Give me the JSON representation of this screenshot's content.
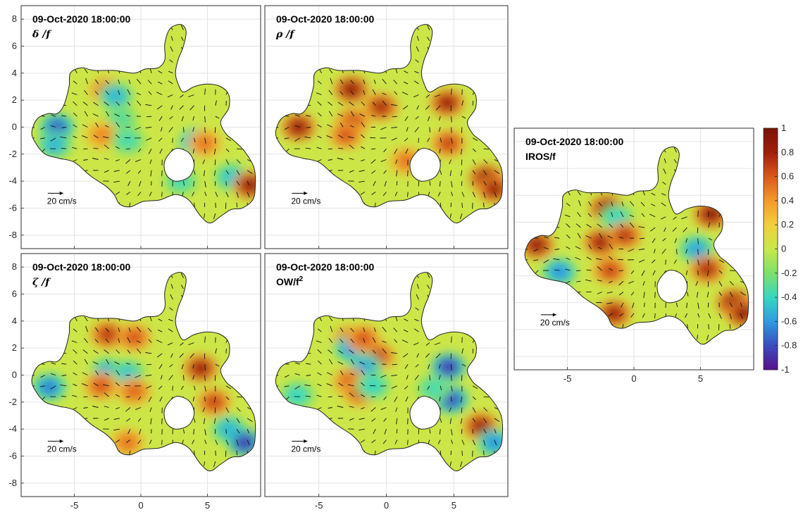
{
  "chart_data": {
    "type": "heatmap",
    "colorbar": {
      "min": -1,
      "max": 1,
      "ticks": [
        "-1",
        "-0.8",
        "-0.6",
        "-0.4",
        "-0.2",
        "0",
        "0.2",
        "0.4",
        "0.6",
        "0.8",
        "1"
      ],
      "colormap": [
        "#5a0f8c",
        "#3a4cc0",
        "#2f9be0",
        "#36d8c0",
        "#7ee06a",
        "#c8e84a",
        "#f2d03a",
        "#f39a2a",
        "#d9581a",
        "#a01e0e",
        "#7a1208"
      ]
    },
    "scale_vector_label": "20 cm/s",
    "panels": [
      {
        "id": "delta",
        "title": "09-Oct-2020 18:00:00",
        "label": "δ /f",
        "xlim": [
          -9,
          9
        ],
        "ylim": [
          -9,
          9
        ],
        "xticks": [
          "-5",
          "0",
          "5"
        ],
        "yticks": [
          "8",
          "6",
          "4",
          "2",
          "0",
          "-2",
          "-4",
          "-6",
          "-8"
        ],
        "show_xticks": false,
        "show_yticks": true,
        "blobs": [
          {
            "x": -6.3,
            "y": 0.0,
            "v": -0.75
          },
          {
            "x": -6.5,
            "y": -1.3,
            "v": -0.5
          },
          {
            "x": -2.6,
            "y": 2.7,
            "v": 0.55
          },
          {
            "x": -1.9,
            "y": 2.3,
            "v": -0.5
          },
          {
            "x": -1.5,
            "y": 0.6,
            "v": -0.3
          },
          {
            "x": -2.9,
            "y": -0.6,
            "v": 0.45
          },
          {
            "x": -1.0,
            "y": -1.0,
            "v": -0.35
          },
          {
            "x": 4.2,
            "y": -1.1,
            "v": -0.75
          },
          {
            "x": 4.8,
            "y": -1.2,
            "v": 0.5
          },
          {
            "x": 6.8,
            "y": -3.7,
            "v": -0.45
          },
          {
            "x": 8.2,
            "y": -4.3,
            "v": 0.85
          },
          {
            "x": 3.0,
            "y": -4.0,
            "v": -0.35
          }
        ]
      },
      {
        "id": "rho",
        "title": "09-Oct-2020 18:00:00",
        "label": "ρ /f",
        "xlim": [
          -9,
          9
        ],
        "ylim": [
          -9,
          9
        ],
        "xticks": [
          "-5",
          "0",
          "5"
        ],
        "yticks": [
          "8",
          "6",
          "4",
          "2",
          "0",
          "-2",
          "-4",
          "-6",
          "-8"
        ],
        "show_xticks": false,
        "show_yticks": false,
        "blobs": [
          {
            "x": -6.5,
            "y": 0.0,
            "v": 0.85
          },
          {
            "x": -2.6,
            "y": 2.8,
            "v": 0.85
          },
          {
            "x": -0.4,
            "y": 1.5,
            "v": 0.75
          },
          {
            "x": -2.5,
            "y": 0.4,
            "v": 0.65
          },
          {
            "x": -3.0,
            "y": -0.6,
            "v": 0.6
          },
          {
            "x": 4.5,
            "y": 1.8,
            "v": 0.8
          },
          {
            "x": 4.6,
            "y": -1.2,
            "v": 0.65
          },
          {
            "x": 7.4,
            "y": -3.8,
            "v": 0.9
          },
          {
            "x": 8.0,
            "y": -4.6,
            "v": 0.8
          },
          {
            "x": 1.5,
            "y": -2.5,
            "v": 0.5
          }
        ]
      },
      {
        "id": "zeta",
        "title": "09-Oct-2020 18:00:00",
        "label": "ζ /f",
        "xlim": [
          -9,
          9
        ],
        "ylim": [
          -9,
          9
        ],
        "xticks": [
          "-5",
          "0",
          "5"
        ],
        "yticks": [
          "8",
          "6",
          "4",
          "2",
          "0",
          "-2",
          "-4",
          "-6",
          "-8"
        ],
        "show_xticks": true,
        "show_yticks": true,
        "blobs": [
          {
            "x": -6.9,
            "y": -0.9,
            "v": -0.65
          },
          {
            "x": -2.5,
            "y": 3.0,
            "v": 0.7
          },
          {
            "x": -0.5,
            "y": 2.8,
            "v": 0.6
          },
          {
            "x": -2.5,
            "y": 0.2,
            "v": -0.55
          },
          {
            "x": -1.0,
            "y": 0.1,
            "v": -0.45
          },
          {
            "x": -3.0,
            "y": -0.8,
            "v": 0.6
          },
          {
            "x": -0.5,
            "y": -1.2,
            "v": 0.55
          },
          {
            "x": 4.5,
            "y": 0.5,
            "v": 0.8
          },
          {
            "x": 5.5,
            "y": -2.0,
            "v": 0.65
          },
          {
            "x": 6.6,
            "y": -4.0,
            "v": -0.5
          },
          {
            "x": 7.8,
            "y": -5.0,
            "v": -0.85
          },
          {
            "x": -1.0,
            "y": -5.0,
            "v": 0.5
          }
        ]
      },
      {
        "id": "ow",
        "title": "09-Oct-2020 18:00:00",
        "label": "OW/f",
        "label_superscript": "2",
        "xlim": [
          -9,
          9
        ],
        "ylim": [
          -9,
          9
        ],
        "xticks": [
          "-5",
          "0",
          "5"
        ],
        "yticks": [
          "8",
          "6",
          "4",
          "2",
          "0",
          "-2",
          "-4",
          "-6",
          "-8"
        ],
        "show_xticks": true,
        "show_yticks": false,
        "blobs": [
          {
            "x": -2.7,
            "y": 2.6,
            "v": 0.7
          },
          {
            "x": -2.6,
            "y": 2.0,
            "v": -0.6
          },
          {
            "x": -1.7,
            "y": 2.7,
            "v": 0.6
          },
          {
            "x": -0.6,
            "y": 1.4,
            "v": 0.65
          },
          {
            "x": -1.6,
            "y": 0.6,
            "v": -0.55
          },
          {
            "x": -2.7,
            "y": -0.5,
            "v": 0.6
          },
          {
            "x": -2.0,
            "y": -1.3,
            "v": 0.6
          },
          {
            "x": -1.0,
            "y": -0.8,
            "v": -0.4
          },
          {
            "x": 4.6,
            "y": 0.6,
            "v": -0.85
          },
          {
            "x": 4.8,
            "y": -1.8,
            "v": -0.8
          },
          {
            "x": 3.5,
            "y": -1.0,
            "v": -0.35
          },
          {
            "x": 7.0,
            "y": -3.8,
            "v": 0.8
          },
          {
            "x": 8.0,
            "y": -5.0,
            "v": -0.6
          },
          {
            "x": -6.6,
            "y": -1.5,
            "v": -0.4
          }
        ]
      },
      {
        "id": "iros",
        "title": "09-Oct-2020 18:00:00",
        "label": "IROS/f",
        "xlim": [
          -9,
          9
        ],
        "ylim": [
          -9,
          9
        ],
        "xticks": [
          "-5",
          "0",
          "5"
        ],
        "yticks": [],
        "show_xticks": true,
        "show_yticks": false,
        "blobs": [
          {
            "x": -7.3,
            "y": 0.3,
            "v": 0.85
          },
          {
            "x": -5.6,
            "y": -1.7,
            "v": -0.6
          },
          {
            "x": -2.0,
            "y": 3.0,
            "v": 0.9
          },
          {
            "x": -1.3,
            "y": 2.3,
            "v": -0.4
          },
          {
            "x": -2.5,
            "y": 0.5,
            "v": 0.8
          },
          {
            "x": -0.7,
            "y": 1.0,
            "v": 0.7
          },
          {
            "x": -1.8,
            "y": -1.6,
            "v": 0.65
          },
          {
            "x": 5.8,
            "y": 2.6,
            "v": 0.9
          },
          {
            "x": 4.7,
            "y": 0.0,
            "v": -0.55
          },
          {
            "x": 5.5,
            "y": -1.5,
            "v": 0.75
          },
          {
            "x": 7.5,
            "y": -4.0,
            "v": 0.9
          },
          {
            "x": 8.2,
            "y": -4.8,
            "v": 0.85
          },
          {
            "x": -1.5,
            "y": -4.8,
            "v": 0.8
          }
        ]
      }
    ]
  }
}
